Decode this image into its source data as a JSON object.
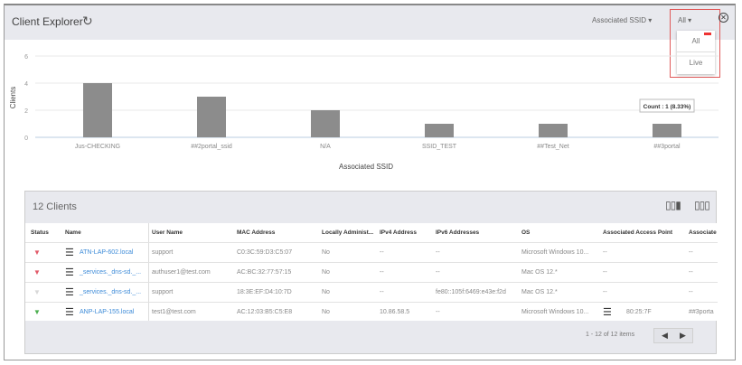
{
  "header": {
    "title": "Client Explorer",
    "refresh_icon": "refresh-icon",
    "group_by": "Associated SSID",
    "filter": "All",
    "filter_options": [
      "All",
      "Live"
    ],
    "close_icon": "close-circle-icon"
  },
  "chart_data": {
    "type": "bar",
    "categories": [
      "Jus-CHECKING",
      "##2portal_ssid",
      "N/A",
      "SSID_TEST",
      "##Test_Net",
      "##3portal"
    ],
    "values": [
      4,
      3,
      2,
      1,
      1,
      1
    ],
    "xlabel": "Associated SSID",
    "ylabel": "Clients",
    "ylim": [
      0,
      6
    ],
    "yticks": [
      0,
      2,
      4,
      6
    ],
    "grid": true,
    "bar_color": "#8c8c8c",
    "tooltip": {
      "category": "##3portal",
      "text": "Count : 1 (8.33%)"
    }
  },
  "table": {
    "count_label": "12 Clients",
    "pagination": "1 - 12 of 12 items",
    "columns": [
      "Status",
      "Name",
      "User Name",
      "MAC Address",
      "Locally Administ...",
      "IPv4 Address",
      "IPv6 Addresses",
      "OS",
      "Associated Access Point",
      "Associate"
    ],
    "rows": [
      {
        "status": "offline",
        "status_color": "#e25b6a",
        "name": "ATN-LAP-602.local",
        "user": "support",
        "mac": "C0:3C:59:D3:C5:07",
        "local": "No",
        "ipv4": "--",
        "ipv6": "--",
        "os": "Microsoft Windows 10...",
        "ap": "--",
        "assoc": "--"
      },
      {
        "status": "offline",
        "status_color": "#e25b6a",
        "name": "_services._dns-sd._...",
        "user": "authuser1@test.com",
        "mac": "AC:BC:32:77:57:15",
        "local": "No",
        "ipv4": "--",
        "ipv6": "--",
        "os": "Mac OS 12.*",
        "ap": "--",
        "assoc": "--"
      },
      {
        "status": "unknown",
        "status_color": "#d8d8d8",
        "name": "_services._dns-sd._...",
        "user": "support",
        "mac": "18:3E:EF:D4:10:7D",
        "local": "No",
        "ipv4": "--",
        "ipv6": "fe80::105f:6469:e43e:f2d",
        "os": "Mac OS 12.*",
        "ap": "--",
        "assoc": "--"
      },
      {
        "status": "online",
        "status_color": "#4caf50",
        "name": "ANP-LAP-155.local",
        "user": "test1@test.com",
        "mac": "AC:12:03:B5:C5:E8",
        "local": "No",
        "ipv4": "10.86.58.5",
        "ipv6": "--",
        "os": "Microsoft Windows 10...",
        "ap": "80:25:7F",
        "assoc": "##3porta"
      }
    ]
  }
}
